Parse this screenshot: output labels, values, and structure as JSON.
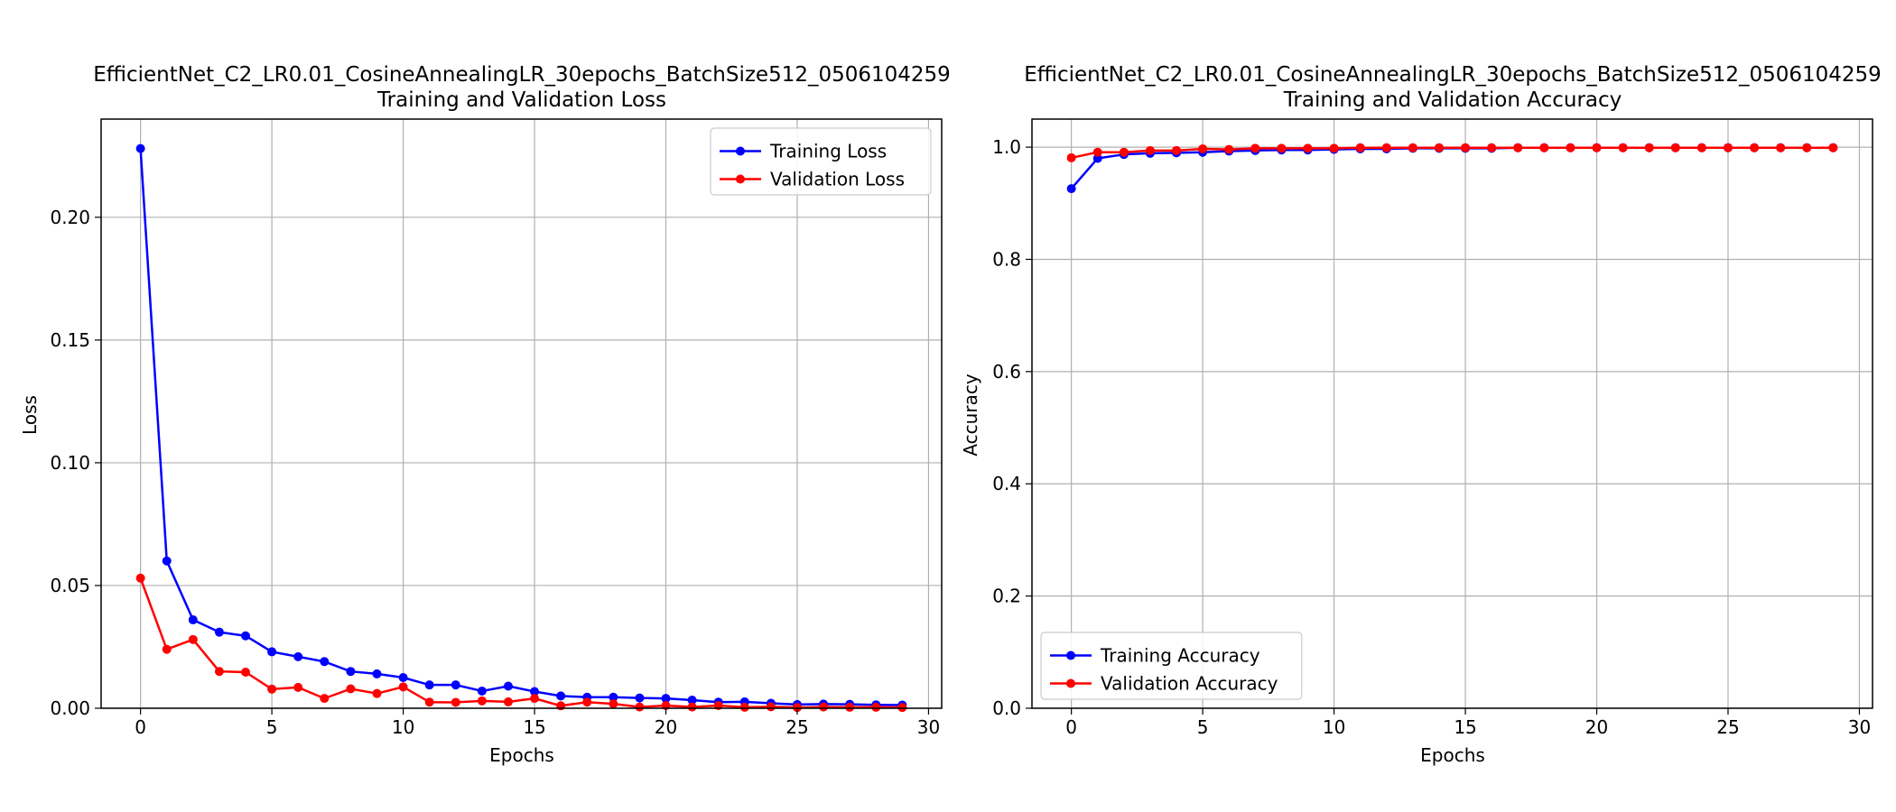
{
  "chart_data": [
    {
      "type": "line",
      "title_line1": "EfficientNet_C2_LR0.01_CosineAnnealingLR_30epochs_BatchSize512_0506104259",
      "title_line2": "Training and Validation Loss",
      "xlabel": "Epochs",
      "ylabel": "Loss",
      "xlim": [
        -1.5,
        30.5
      ],
      "ylim": [
        0,
        0.24
      ],
      "xticks": [
        0,
        5,
        10,
        15,
        20,
        25,
        30
      ],
      "yticks": [
        0.0,
        0.05,
        0.1,
        0.15,
        0.2
      ],
      "ytick_labels": [
        "0.00",
        "0.05",
        "0.10",
        "0.15",
        "0.20"
      ],
      "grid": true,
      "legend_position": "upper right",
      "x": [
        0,
        1,
        2,
        3,
        4,
        5,
        6,
        7,
        8,
        9,
        10,
        11,
        12,
        13,
        14,
        15,
        16,
        17,
        18,
        19,
        20,
        21,
        22,
        23,
        24,
        25,
        26,
        27,
        28,
        29
      ],
      "series": [
        {
          "name": "Training Loss",
          "color": "#0000ff",
          "values": [
            0.228,
            0.06,
            0.036,
            0.031,
            0.0295,
            0.023,
            0.021,
            0.019,
            0.015,
            0.014,
            0.0125,
            0.0095,
            0.0095,
            0.007,
            0.009,
            0.0068,
            0.005,
            0.0045,
            0.0045,
            0.0042,
            0.004,
            0.0033,
            0.0025,
            0.0026,
            0.002,
            0.0015,
            0.0017,
            0.0016,
            0.0014,
            0.0013
          ]
        },
        {
          "name": "Validation Loss",
          "color": "#ff0000",
          "values": [
            0.053,
            0.024,
            0.028,
            0.015,
            0.0147,
            0.0078,
            0.0085,
            0.004,
            0.0079,
            0.006,
            0.0087,
            0.0025,
            0.0024,
            0.003,
            0.0026,
            0.004,
            0.001,
            0.0025,
            0.0018,
            0.0005,
            0.0011,
            0.0005,
            0.0011,
            0.0004,
            0.0006,
            0.0003,
            0.0005,
            0.0004,
            0.0004,
            0.0003
          ]
        }
      ]
    },
    {
      "type": "line",
      "title_line1": "EfficientNet_C2_LR0.01_CosineAnnealingLR_30epochs_BatchSize512_0506104259",
      "title_line2": "Training and Validation Accuracy",
      "xlabel": "Epochs",
      "ylabel": "Accuracy",
      "xlim": [
        -1.5,
        30.5
      ],
      "ylim": [
        0,
        1.05
      ],
      "xticks": [
        0,
        5,
        10,
        15,
        20,
        25,
        30
      ],
      "yticks": [
        0.0,
        0.2,
        0.4,
        0.6,
        0.8,
        1.0
      ],
      "ytick_labels": [
        "0.0",
        "0.2",
        "0.4",
        "0.6",
        "0.8",
        "1.0"
      ],
      "grid": true,
      "legend_position": "lower left",
      "x": [
        0,
        1,
        2,
        3,
        4,
        5,
        6,
        7,
        8,
        9,
        10,
        11,
        12,
        13,
        14,
        15,
        16,
        17,
        18,
        19,
        20,
        21,
        22,
        23,
        24,
        25,
        26,
        27,
        28,
        29
      ],
      "series": [
        {
          "name": "Training Accuracy",
          "color": "#0000ff",
          "values": [
            0.926,
            0.98,
            0.987,
            0.989,
            0.99,
            0.991,
            0.993,
            0.994,
            0.995,
            0.995,
            0.996,
            0.997,
            0.997,
            0.998,
            0.998,
            0.998,
            0.998,
            0.999,
            0.999,
            0.999,
            0.999,
            0.999,
            0.999,
            0.999,
            0.999,
            0.999,
            0.999,
            0.999,
            0.999,
            0.999
          ]
        },
        {
          "name": "Validation Accuracy",
          "color": "#ff0000",
          "values": [
            0.981,
            0.991,
            0.991,
            0.994,
            0.994,
            0.997,
            0.996,
            0.998,
            0.998,
            0.998,
            0.998,
            0.999,
            0.999,
            0.999,
            0.999,
            0.999,
            0.999,
            0.999,
            0.999,
            0.999,
            0.999,
            0.999,
            0.999,
            0.999,
            0.999,
            0.999,
            0.999,
            0.999,
            0.999,
            0.999
          ]
        }
      ]
    }
  ]
}
